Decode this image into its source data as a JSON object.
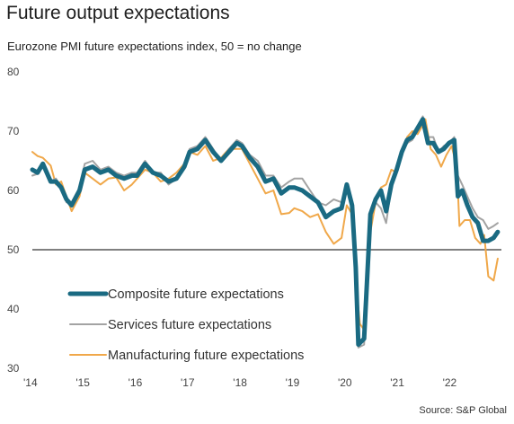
{
  "title": "Future output expectations",
  "subtitle": "Eurozone PMI future expectations index, 50 = no change",
  "source": "Source: S&P Global",
  "chart_data": {
    "type": "line",
    "ylim": [
      30,
      80
    ],
    "yticks": [
      30,
      40,
      50,
      60,
      70,
      80
    ],
    "xlim": [
      2014.0,
      2022.95
    ],
    "xticks": [
      {
        "x": 2014,
        "label": "'14"
      },
      {
        "x": 2015,
        "label": "'15"
      },
      {
        "x": 2016,
        "label": "'16"
      },
      {
        "x": 2017,
        "label": "'17"
      },
      {
        "x": 2018,
        "label": "'18"
      },
      {
        "x": 2019,
        "label": "'19"
      },
      {
        "x": 2020,
        "label": "'20"
      },
      {
        "x": 2021,
        "label": "'21"
      },
      {
        "x": 2022,
        "label": "'22"
      }
    ],
    "reference_line": 50,
    "grid": false,
    "legend_position": "bottom-left",
    "series": [
      {
        "name": "Manufacturing future expectations",
        "color": "#f0a84a",
        "width": 2,
        "points": [
          [
            2014.0,
            66.5
          ],
          [
            2014.1,
            65.8
          ],
          [
            2014.2,
            65.5
          ],
          [
            2014.35,
            64.2
          ],
          [
            2014.45,
            61.0
          ],
          [
            2014.55,
            61.5
          ],
          [
            2014.65,
            59.0
          ],
          [
            2014.75,
            56.5
          ],
          [
            2014.9,
            59.0
          ],
          [
            2015.0,
            63.0
          ],
          [
            2015.15,
            62.0
          ],
          [
            2015.3,
            61.0
          ],
          [
            2015.45,
            62.0
          ],
          [
            2015.6,
            62.2
          ],
          [
            2015.75,
            60.0
          ],
          [
            2015.9,
            61.0
          ],
          [
            2016.0,
            62.0
          ],
          [
            2016.15,
            63.5
          ],
          [
            2016.3,
            63.0
          ],
          [
            2016.45,
            61.5
          ],
          [
            2016.6,
            62.0
          ],
          [
            2016.75,
            63.0
          ],
          [
            2016.9,
            64.5
          ],
          [
            2017.0,
            66.5
          ],
          [
            2017.15,
            66.0
          ],
          [
            2017.3,
            67.5
          ],
          [
            2017.45,
            65.0
          ],
          [
            2017.6,
            65.5
          ],
          [
            2017.75,
            67.0
          ],
          [
            2017.9,
            67.0
          ],
          [
            2018.0,
            67.0
          ],
          [
            2018.15,
            64.5
          ],
          [
            2018.3,
            62.0
          ],
          [
            2018.45,
            59.5
          ],
          [
            2018.6,
            60.0
          ],
          [
            2018.75,
            56.0
          ],
          [
            2018.9,
            56.2
          ],
          [
            2019.0,
            57.0
          ],
          [
            2019.15,
            56.5
          ],
          [
            2019.3,
            55.5
          ],
          [
            2019.45,
            56.0
          ],
          [
            2019.6,
            53.0
          ],
          [
            2019.75,
            51.0
          ],
          [
            2019.9,
            52.0
          ],
          [
            2020.0,
            57.5
          ],
          [
            2020.1,
            56.0
          ],
          [
            2020.17,
            45.0
          ],
          [
            2020.25,
            37.5
          ],
          [
            2020.33,
            36.5
          ],
          [
            2020.45,
            53.0
          ],
          [
            2020.55,
            58.0
          ],
          [
            2020.65,
            60.5
          ],
          [
            2020.75,
            61.0
          ],
          [
            2020.85,
            63.5
          ],
          [
            2020.95,
            63.0
          ],
          [
            2021.05,
            66.0
          ],
          [
            2021.15,
            69.0
          ],
          [
            2021.25,
            70.0
          ],
          [
            2021.35,
            69.5
          ],
          [
            2021.45,
            71.0
          ],
          [
            2021.5,
            72.0
          ],
          [
            2021.6,
            67.0
          ],
          [
            2021.7,
            66.0
          ],
          [
            2021.8,
            64.0
          ],
          [
            2021.9,
            66.0
          ],
          [
            2022.0,
            67.5
          ],
          [
            2022.1,
            64.0
          ],
          [
            2022.15,
            54.0
          ],
          [
            2022.25,
            55.0
          ],
          [
            2022.35,
            55.0
          ],
          [
            2022.45,
            52.0
          ],
          [
            2022.55,
            51.0
          ],
          [
            2022.62,
            52.5
          ],
          [
            2022.7,
            45.5
          ],
          [
            2022.8,
            44.8
          ],
          [
            2022.88,
            48.5
          ]
        ]
      },
      {
        "name": "Services future expectations",
        "color": "#a3a3a3",
        "width": 2,
        "points": [
          [
            2014.0,
            62.5
          ],
          [
            2014.1,
            62.8
          ],
          [
            2014.2,
            64.0
          ],
          [
            2014.35,
            61.5
          ],
          [
            2014.45,
            62.0
          ],
          [
            2014.55,
            60.5
          ],
          [
            2014.65,
            58.0
          ],
          [
            2014.75,
            58.0
          ],
          [
            2014.9,
            60.5
          ],
          [
            2015.0,
            64.5
          ],
          [
            2015.15,
            65.0
          ],
          [
            2015.3,
            63.5
          ],
          [
            2015.45,
            64.0
          ],
          [
            2015.6,
            63.0
          ],
          [
            2015.75,
            62.5
          ],
          [
            2015.9,
            63.0
          ],
          [
            2016.0,
            63.0
          ],
          [
            2016.15,
            65.0
          ],
          [
            2016.3,
            63.0
          ],
          [
            2016.45,
            63.0
          ],
          [
            2016.6,
            61.0
          ],
          [
            2016.75,
            62.0
          ],
          [
            2016.9,
            64.5
          ],
          [
            2017.0,
            67.0
          ],
          [
            2017.15,
            67.5
          ],
          [
            2017.3,
            69.0
          ],
          [
            2017.45,
            67.0
          ],
          [
            2017.6,
            65.0
          ],
          [
            2017.75,
            67.0
          ],
          [
            2017.9,
            68.5
          ],
          [
            2018.0,
            68.0
          ],
          [
            2018.15,
            66.0
          ],
          [
            2018.3,
            65.0
          ],
          [
            2018.45,
            62.5
          ],
          [
            2018.6,
            62.5
          ],
          [
            2018.75,
            60.5
          ],
          [
            2018.9,
            61.5
          ],
          [
            2019.0,
            62.0
          ],
          [
            2019.15,
            62.0
          ],
          [
            2019.3,
            60.0
          ],
          [
            2019.45,
            58.0
          ],
          [
            2019.6,
            57.5
          ],
          [
            2019.75,
            58.5
          ],
          [
            2019.9,
            58.0
          ],
          [
            2020.0,
            61.0
          ],
          [
            2020.1,
            58.0
          ],
          [
            2020.17,
            48.0
          ],
          [
            2020.22,
            33.5
          ],
          [
            2020.33,
            34.0
          ],
          [
            2020.45,
            56.5
          ],
          [
            2020.55,
            58.0
          ],
          [
            2020.65,
            57.0
          ],
          [
            2020.75,
            54.5
          ],
          [
            2020.85,
            60.5
          ],
          [
            2020.95,
            63.0
          ],
          [
            2021.05,
            66.5
          ],
          [
            2021.15,
            68.0
          ],
          [
            2021.25,
            68.5
          ],
          [
            2021.35,
            70.5
          ],
          [
            2021.45,
            72.5
          ],
          [
            2021.55,
            69.0
          ],
          [
            2021.65,
            69.0
          ],
          [
            2021.75,
            66.5
          ],
          [
            2021.85,
            67.5
          ],
          [
            2021.95,
            68.0
          ],
          [
            2022.05,
            69.0
          ],
          [
            2022.12,
            62.5
          ],
          [
            2022.2,
            61.0
          ],
          [
            2022.3,
            59.0
          ],
          [
            2022.4,
            57.0
          ],
          [
            2022.5,
            55.5
          ],
          [
            2022.6,
            55.0
          ],
          [
            2022.7,
            53.5
          ],
          [
            2022.8,
            54.0
          ],
          [
            2022.88,
            54.5
          ]
        ]
      },
      {
        "name": "Composite future expectations",
        "color": "#1a6a82",
        "width": 5,
        "points": [
          [
            2014.0,
            63.5
          ],
          [
            2014.1,
            63.0
          ],
          [
            2014.2,
            64.5
          ],
          [
            2014.35,
            61.5
          ],
          [
            2014.45,
            61.5
          ],
          [
            2014.55,
            60.5
          ],
          [
            2014.65,
            58.5
          ],
          [
            2014.75,
            57.5
          ],
          [
            2014.9,
            60.0
          ],
          [
            2015.0,
            63.5
          ],
          [
            2015.15,
            64.0
          ],
          [
            2015.3,
            63.0
          ],
          [
            2015.45,
            63.5
          ],
          [
            2015.6,
            62.5
          ],
          [
            2015.75,
            62.0
          ],
          [
            2015.9,
            62.5
          ],
          [
            2016.0,
            62.5
          ],
          [
            2016.15,
            64.5
          ],
          [
            2016.3,
            63.0
          ],
          [
            2016.45,
            62.5
          ],
          [
            2016.6,
            61.5
          ],
          [
            2016.75,
            62.0
          ],
          [
            2016.9,
            64.0
          ],
          [
            2017.0,
            66.5
          ],
          [
            2017.15,
            67.0
          ],
          [
            2017.3,
            68.5
          ],
          [
            2017.45,
            66.5
          ],
          [
            2017.6,
            65.0
          ],
          [
            2017.75,
            66.5
          ],
          [
            2017.9,
            68.0
          ],
          [
            2018.0,
            67.5
          ],
          [
            2018.15,
            65.5
          ],
          [
            2018.3,
            64.0
          ],
          [
            2018.45,
            61.5
          ],
          [
            2018.6,
            62.0
          ],
          [
            2018.75,
            59.5
          ],
          [
            2018.9,
            60.5
          ],
          [
            2019.0,
            60.5
          ],
          [
            2019.15,
            60.0
          ],
          [
            2019.3,
            59.0
          ],
          [
            2019.45,
            58.0
          ],
          [
            2019.6,
            55.5
          ],
          [
            2019.75,
            56.5
          ],
          [
            2019.9,
            57.0
          ],
          [
            2020.0,
            61.0
          ],
          [
            2020.1,
            57.5
          ],
          [
            2020.17,
            47.0
          ],
          [
            2020.22,
            34.0
          ],
          [
            2020.33,
            35.0
          ],
          [
            2020.45,
            56.0
          ],
          [
            2020.55,
            58.5
          ],
          [
            2020.65,
            60.0
          ],
          [
            2020.75,
            56.5
          ],
          [
            2020.85,
            61.0
          ],
          [
            2020.95,
            63.5
          ],
          [
            2021.05,
            66.5
          ],
          [
            2021.15,
            68.5
          ],
          [
            2021.25,
            69.0
          ],
          [
            2021.35,
            70.5
          ],
          [
            2021.45,
            72.0
          ],
          [
            2021.55,
            68.0
          ],
          [
            2021.65,
            68.0
          ],
          [
            2021.75,
            66.5
          ],
          [
            2021.85,
            67.0
          ],
          [
            2021.95,
            68.0
          ],
          [
            2022.05,
            68.5
          ],
          [
            2022.12,
            59.0
          ],
          [
            2022.2,
            60.0
          ],
          [
            2022.3,
            57.5
          ],
          [
            2022.4,
            55.5
          ],
          [
            2022.5,
            54.5
          ],
          [
            2022.6,
            51.5
          ],
          [
            2022.7,
            51.5
          ],
          [
            2022.8,
            52.0
          ],
          [
            2022.88,
            53.0
          ]
        ]
      }
    ],
    "legend_order": [
      2,
      1,
      0
    ]
  }
}
